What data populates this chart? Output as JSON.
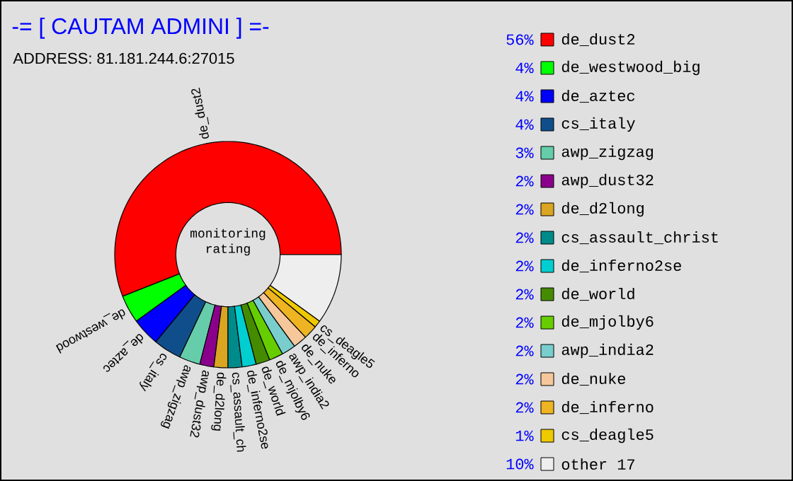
{
  "chart_data": {
    "type": "donut",
    "title": "-= [ CAUTAM ADMINI ] =-",
    "subtitle": "ADDRESS: 81.181.244.6:27015",
    "categories": [
      "de_dust2",
      "de_westwood_big",
      "de_aztec",
      "cs_italy",
      "awp_zigzag",
      "awp_dust32",
      "de_d2long",
      "cs_assault_christ",
      "de_inferno2se",
      "de_world",
      "de_mjolby6",
      "awp_india2",
      "de_nuke",
      "de_inferno",
      "cs_deagle5",
      "other 17"
    ],
    "values": [
      56,
      4,
      4,
      4,
      3,
      2,
      2,
      2,
      2,
      2,
      2,
      2,
      2,
      2,
      1,
      10
    ],
    "value_labels": [
      "56%",
      "4%",
      "4%",
      "4%",
      "3%",
      "2%",
      "2%",
      "2%",
      "2%",
      "2%",
      "2%",
      "2%",
      "2%",
      "2%",
      "1%",
      "10%"
    ],
    "colors": [
      "#ff0000",
      "#00ff00",
      "#0000ff",
      "#104e8b",
      "#66cdaa",
      "#8b008b",
      "#daa520",
      "#008b8b",
      "#00ced1",
      "#458b00",
      "#66cd00",
      "#79cdcd",
      "#f5c79a",
      "#eeb422",
      "#eec900",
      "#eeeeee"
    ],
    "legend": "right",
    "annotations": [
      "monitoring rating",
      "de_dust2",
      "de_westwood",
      "de_aztec",
      "cs_italy",
      "awp_zigzag",
      "awp_dust32",
      "de_d2long",
      "cs_assault_ch",
      "de_inferno2se",
      "de_world",
      "de_mjolby6",
      "awp_india2",
      "de_nuke",
      "de_inferno",
      "cs_deagle5"
    ]
  }
}
